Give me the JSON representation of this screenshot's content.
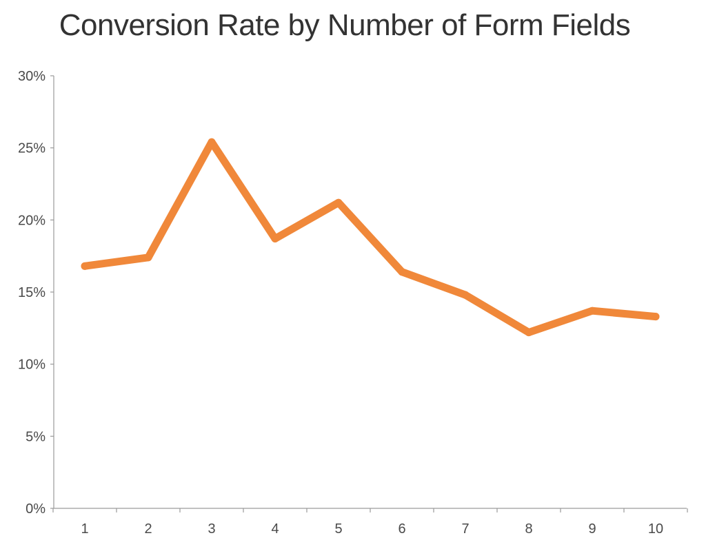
{
  "chart_data": {
    "type": "line",
    "title": "Conversion Rate by Number of Form Fields",
    "xlabel": "",
    "ylabel": "",
    "categories": [
      "1",
      "2",
      "3",
      "4",
      "5",
      "6",
      "7",
      "8",
      "9",
      "10"
    ],
    "series": [
      {
        "values": [
          16.8,
          17.4,
          25.4,
          18.7,
          21.2,
          16.4,
          14.8,
          12.2,
          13.7,
          13.3
        ]
      }
    ],
    "ylim": [
      0,
      30
    ],
    "yticks": [
      0,
      5,
      10,
      15,
      20,
      25,
      30
    ],
    "ytick_labels": [
      "0%",
      "5%",
      "10%",
      "15%",
      "20%",
      "25%",
      "30%"
    ],
    "grid": false,
    "colors": {
      "line": "#F0883A",
      "axis": "#9A9A9A",
      "text": "#4A4A4A",
      "title": "#333333"
    }
  }
}
